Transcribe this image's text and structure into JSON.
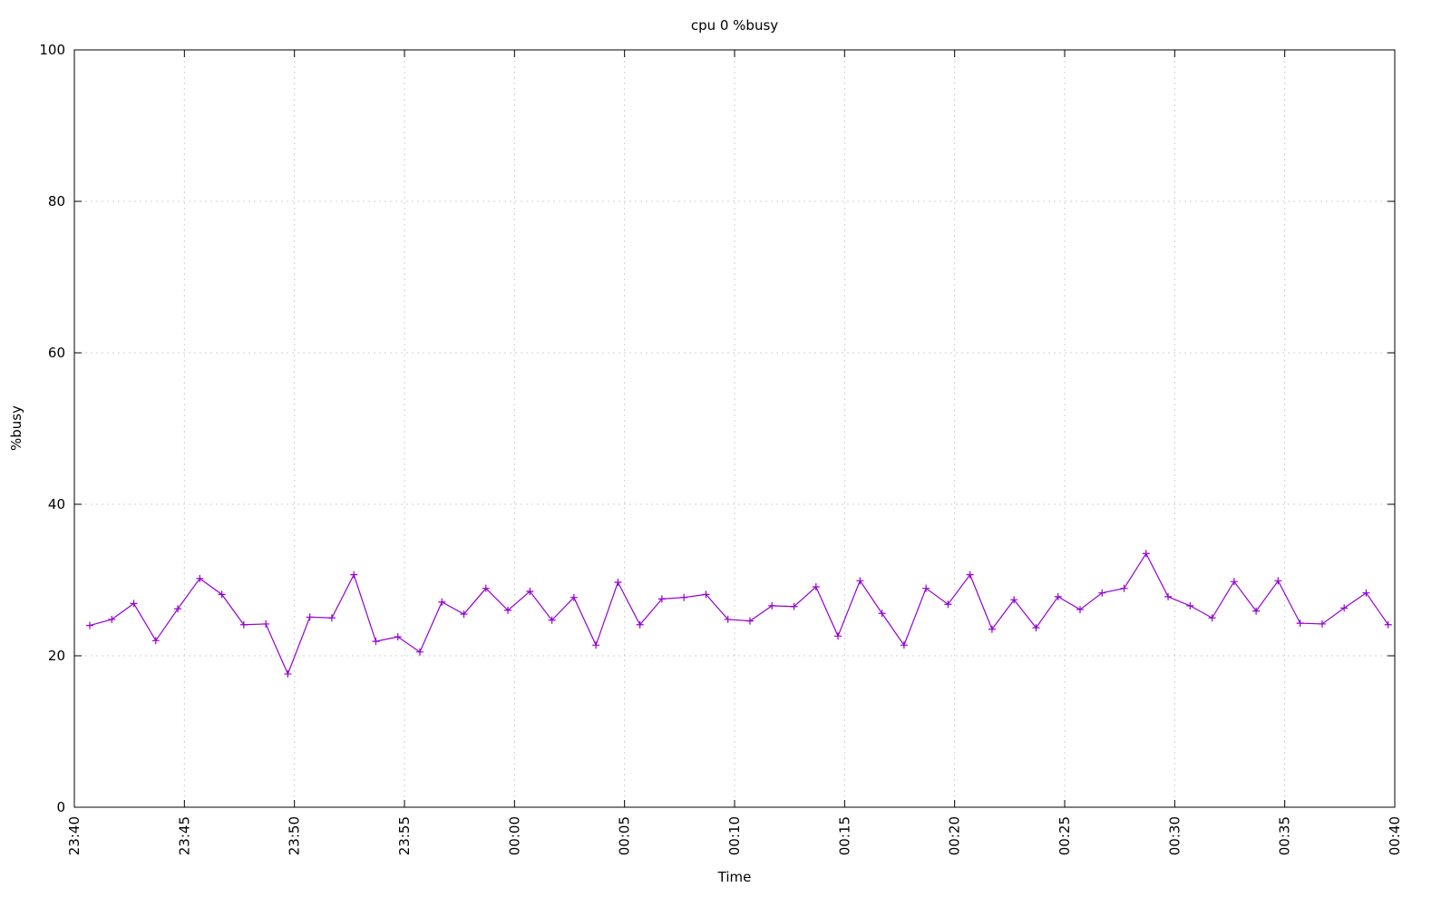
{
  "chart_data": {
    "type": "line",
    "title": "cpu 0 %busy",
    "xlabel": "Time",
    "ylabel": "%busy",
    "x": [
      0.7,
      1.7,
      2.7,
      3.7,
      4.7,
      5.7,
      6.7,
      7.7,
      8.7,
      9.7,
      10.7,
      11.7,
      12.7,
      13.7,
      14.7,
      15.7,
      16.7,
      17.7,
      18.7,
      19.7,
      20.7,
      21.7,
      22.7,
      23.7,
      24.7,
      25.7,
      26.7,
      27.7,
      28.7,
      29.7,
      30.7,
      31.7,
      32.7,
      33.7,
      34.7,
      35.7,
      36.7,
      37.7,
      38.7,
      39.7,
      40.7,
      41.7,
      42.7,
      43.7,
      44.7,
      45.7,
      46.7,
      47.7,
      48.7,
      49.7,
      50.7,
      51.7,
      52.7,
      53.7,
      54.7,
      55.7,
      56.7,
      57.7,
      58.7,
      59.7
    ],
    "series": [
      {
        "color": "#9400d3",
        "values": [
          24.0,
          24.8,
          26.9,
          22.0,
          26.2,
          30.2,
          28.1,
          24.1,
          24.2,
          17.6,
          25.1,
          25.0,
          30.7,
          21.9,
          22.5,
          20.5,
          27.1,
          25.5,
          28.9,
          26.0,
          28.5,
          24.7,
          27.7,
          21.4,
          29.7,
          24.1,
          27.5,
          27.7,
          28.1,
          24.8,
          24.6,
          26.6,
          26.5,
          29.1,
          22.6,
          29.9,
          25.6,
          21.4,
          28.9,
          26.8,
          30.7,
          23.5,
          27.4,
          23.7,
          27.8,
          26.1,
          28.3,
          28.9,
          33.5,
          27.8,
          26.6,
          25.0,
          29.8,
          25.9,
          29.9,
          24.3,
          24.2,
          26.3,
          28.3,
          24.1
        ]
      }
    ],
    "xlim": [
      0,
      60
    ],
    "xticks": [
      {
        "value": 0,
        "label": "23:40"
      },
      {
        "value": 5,
        "label": "23:45"
      },
      {
        "value": 10,
        "label": "23:50"
      },
      {
        "value": 15,
        "label": "23:55"
      },
      {
        "value": 20,
        "label": "00:00"
      },
      {
        "value": 25,
        "label": "00:05"
      },
      {
        "value": 30,
        "label": "00:10"
      },
      {
        "value": 35,
        "label": "00:15"
      },
      {
        "value": 40,
        "label": "00:20"
      },
      {
        "value": 45,
        "label": "00:25"
      },
      {
        "value": 50,
        "label": "00:30"
      },
      {
        "value": 55,
        "label": "00:35"
      },
      {
        "value": 60,
        "label": "00:40"
      }
    ],
    "ylim": [
      0,
      100
    ],
    "yticks": [
      0,
      20,
      40,
      60,
      80,
      100
    ],
    "grid": true
  }
}
